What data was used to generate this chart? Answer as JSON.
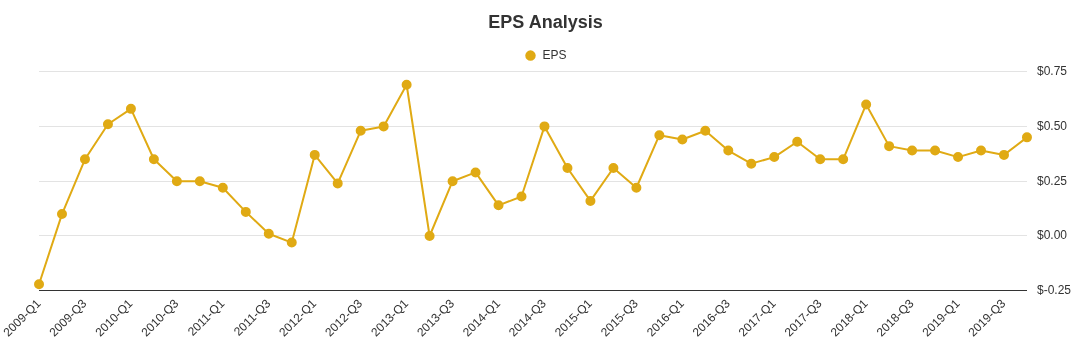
{
  "chart_data": {
    "type": "line",
    "title": "EPS Analysis",
    "categories": [
      "2009-Q1",
      null,
      "2009-Q3",
      null,
      "2010-Q1",
      null,
      "2010-Q3",
      null,
      "2011-Q1",
      null,
      "2011-Q3",
      null,
      "2012-Q1",
      null,
      "2012-Q3",
      null,
      "2013-Q1",
      null,
      "2013-Q3",
      null,
      "2014-Q1",
      null,
      "2014-Q3",
      null,
      "2015-Q1",
      null,
      "2015-Q3",
      null,
      "2016-Q1",
      null,
      "2016-Q3",
      null,
      "2017-Q1",
      null,
      "2017-Q3",
      null,
      "2018-Q1",
      null,
      "2018-Q3",
      null,
      "2019-Q1",
      null,
      "2019-Q3",
      null
    ],
    "series": [
      {
        "name": "EPS",
        "color": "#e0aa14",
        "values": [
          -0.22,
          0.1,
          0.35,
          0.51,
          0.58,
          0.35,
          0.25,
          0.25,
          0.22,
          0.11,
          0.01,
          -0.03,
          0.37,
          0.24,
          0.48,
          0.5,
          0.69,
          0.0,
          0.25,
          0.29,
          0.14,
          0.18,
          0.5,
          0.31,
          0.16,
          0.31,
          0.22,
          0.46,
          0.44,
          0.48,
          0.39,
          0.33,
          0.36,
          0.43,
          0.35,
          0.35,
          0.6,
          0.41,
          0.39,
          0.39,
          0.36,
          0.39,
          0.37,
          0.45
        ]
      }
    ],
    "ylim": [
      -0.25,
      0.75
    ],
    "yticks": [
      {
        "value": -0.25,
        "label": "$-0.25"
      },
      {
        "value": 0,
        "label": "$0.00"
      },
      {
        "value": 0.25,
        "label": "$0.25"
      },
      {
        "value": 0.5,
        "label": "$0.50"
      },
      {
        "value": 0.75,
        "label": "$0.75"
      }
    ],
    "grid": "y",
    "legend": "top",
    "marker": "circle",
    "line_style": "solid"
  }
}
